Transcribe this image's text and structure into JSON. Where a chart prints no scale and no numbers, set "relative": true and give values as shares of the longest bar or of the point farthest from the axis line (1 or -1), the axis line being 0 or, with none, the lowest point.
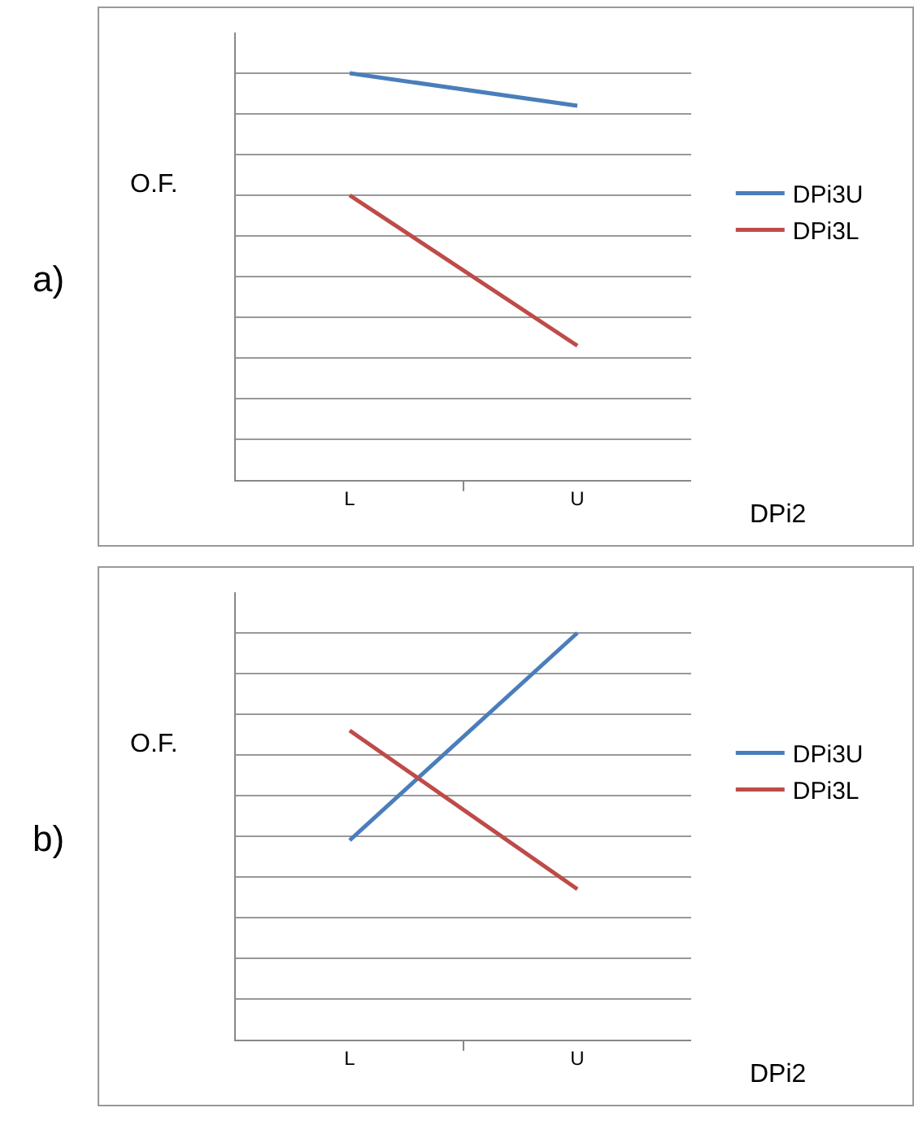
{
  "chart_data": [
    {
      "type": "line",
      "annotations": [
        "a)"
      ],
      "ylabel": "O.F.",
      "xlabel": "DPi2",
      "categories": [
        "L",
        "U"
      ],
      "relative": true,
      "grid": "y",
      "legend": "right",
      "marker": "none",
      "series": [
        {
          "name": "DPi3U",
          "color": "#4a7ebb",
          "values": [
            1,
            0.92
          ]
        },
        {
          "name": "DPi3L",
          "color": "#be4b48",
          "values": [
            0.7,
            0.33
          ]
        }
      ]
    },
    {
      "type": "line",
      "annotations": [
        "b)"
      ],
      "ylabel": "O.F.",
      "xlabel": "DPi2",
      "categories": [
        "L",
        "U"
      ],
      "relative": true,
      "grid": "y",
      "legend": "right",
      "marker": "none",
      "series": [
        {
          "name": "DPi3U",
          "color": "#4a7ebb",
          "values": [
            0.49,
            1
          ]
        },
        {
          "name": "DPi3L",
          "color": "#be4b48",
          "values": [
            0.76,
            0.37
          ]
        }
      ]
    }
  ]
}
